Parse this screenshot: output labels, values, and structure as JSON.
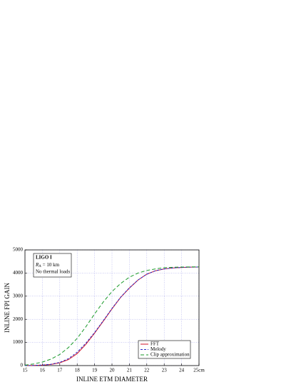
{
  "chart_data": {
    "type": "line",
    "x_label": "INLINE ETM DIAMETER",
    "y_label": "INLINE FPI GAIN",
    "annotation": {
      "title": "LIGO I",
      "ra_symbol": "R",
      "ra_subscript": "A",
      "ra_value": " = 10 km",
      "note": "No thermal loads"
    },
    "x": [
      15,
      15.5,
      16,
      16.5,
      17,
      17.5,
      18,
      18.5,
      19,
      19.5,
      20,
      20.5,
      21,
      21.5,
      22,
      22.5,
      23,
      23.5,
      24,
      24.5,
      25
    ],
    "series": [
      {
        "name": "FFT",
        "color": "#d0142a",
        "dash": "",
        "values": [
          0,
          5,
          20,
          50,
          120,
          260,
          520,
          920,
          1400,
          1920,
          2450,
          2950,
          3350,
          3700,
          3950,
          4100,
          4180,
          4220,
          4240,
          4255,
          4260
        ]
      },
      {
        "name": "Melody",
        "color": "#2a2ac8",
        "dash": "3,2",
        "values": [
          0,
          5,
          25,
          60,
          140,
          300,
          580,
          970,
          1430,
          1940,
          2470,
          2960,
          3360,
          3700,
          3950,
          4100,
          4180,
          4220,
          4240,
          4255,
          4260
        ]
      },
      {
        "name": "Clip approximation",
        "color": "#1a9a2a",
        "dash": "5,3",
        "values": [
          20,
          70,
          150,
          280,
          480,
          780,
          1180,
          1680,
          2230,
          2750,
          3200,
          3550,
          3820,
          4000,
          4110,
          4180,
          4230,
          4250,
          4260,
          4265,
          4270
        ]
      }
    ],
    "xlim": [
      15,
      25
    ],
    "ylim": [
      0,
      5000
    ],
    "xticks": [
      15,
      16,
      17,
      18,
      19,
      20,
      21,
      22,
      23,
      24,
      {
        "value": 25,
        "label": "25cm"
      }
    ],
    "yticks": [
      0,
      1000,
      2000,
      3000,
      4000,
      5000
    ],
    "grid": true,
    "legend": "lower right"
  }
}
